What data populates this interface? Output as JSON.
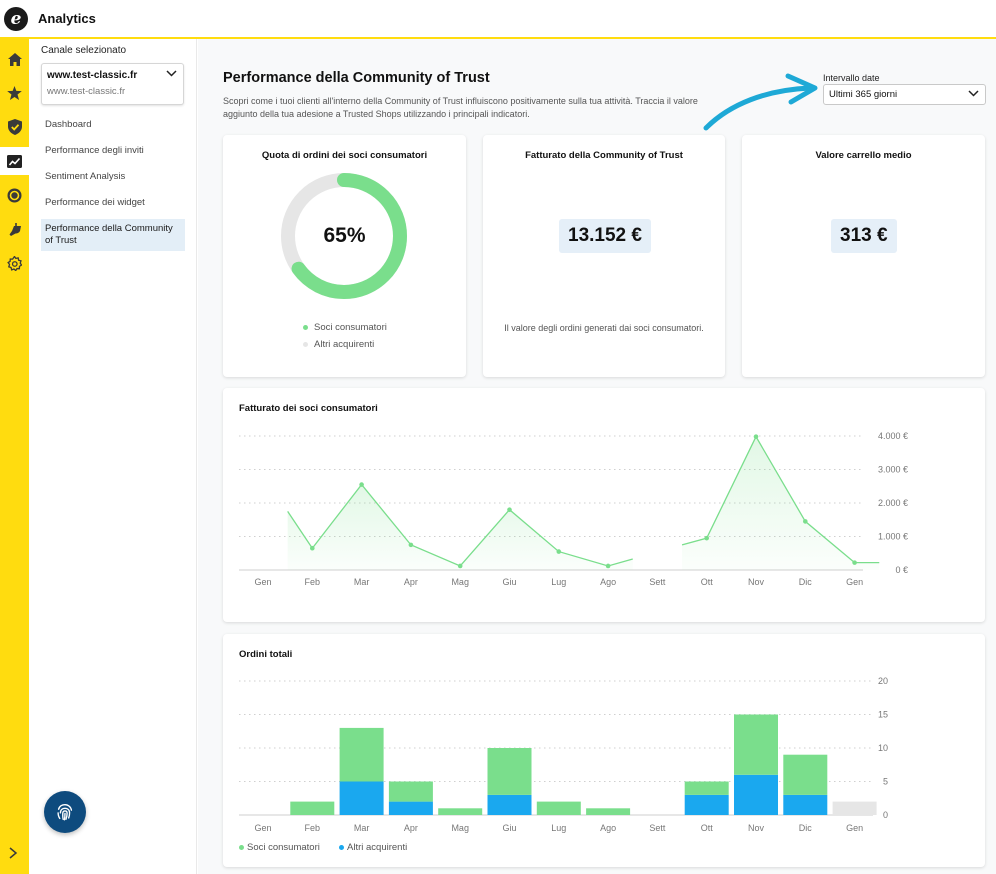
{
  "app": {
    "title": "Analytics"
  },
  "rail": {
    "items": [
      {
        "name": "home-icon"
      },
      {
        "name": "star-icon"
      },
      {
        "name": "shield-check-icon"
      },
      {
        "name": "analytics-icon",
        "active": true
      },
      {
        "name": "coin-icon"
      },
      {
        "name": "plug-icon"
      },
      {
        "name": "gear-icon"
      }
    ]
  },
  "sidebar": {
    "channel_label": "Canale selezionato",
    "channel_selected": "www.test-classic.fr",
    "channel_url": "www.test-classic.fr",
    "items": [
      {
        "label": "Dashboard"
      },
      {
        "label": "Performance degli inviti"
      },
      {
        "label": "Sentiment Analysis"
      },
      {
        "label": "Performance dei widget"
      },
      {
        "label": "Performance della Community of Trust",
        "active": true
      }
    ]
  },
  "page": {
    "title": "Performance della Community of Trust",
    "description": "Scopri come i tuoi clienti all'interno della Community of Trust influiscono positivamente sulla tua attività. Traccia il valore aggiunto della tua adesione a Trusted Shops utilizzando i principali indicatori.",
    "date_label": "Intervallo date",
    "date_value": "Ultimi 365 giorni"
  },
  "cards": {
    "share": {
      "title": "Quota di ordini dei soci consumatori",
      "value": "65%",
      "fraction": 0.65,
      "legend": [
        "Soci consumatori",
        "Altri acquirenti"
      ]
    },
    "revenue": {
      "title": "Fatturato della Community of Trust",
      "value": "13.152 €",
      "note": "Il valore degli ordini generati dai soci consumatori."
    },
    "basket": {
      "title": "Valore carrello medio",
      "value": "313 €"
    }
  },
  "colors": {
    "green": "#7ade8c",
    "blue": "#1aa8ef",
    "grey": "#e6e6e6",
    "yellow": "#ffdc0f",
    "arrow": "#1ea9d6"
  },
  "chart_data": [
    {
      "type": "line",
      "title": "Fatturato dei soci consumatori",
      "categories": [
        "Gen",
        "Feb",
        "Mar",
        "Apr",
        "Mag",
        "Giu",
        "Lug",
        "Ago",
        "Sett",
        "Ott",
        "Nov",
        "Dic",
        "Gen"
      ],
      "y_ticks": [
        "0 €",
        "1.000 €",
        "2.000 €",
        "3.000 €",
        "4.000 €"
      ],
      "ylim": [
        0,
        4000
      ],
      "grid": true,
      "segments": [
        [
          [
            0.5,
            1750
          ],
          [
            1,
            650
          ],
          [
            2,
            2550
          ],
          [
            3,
            750
          ],
          [
            4,
            120
          ],
          [
            5,
            1800
          ],
          [
            6,
            550
          ],
          [
            7,
            120
          ],
          [
            7.5,
            330
          ]
        ],
        [
          [
            8.5,
            750
          ],
          [
            9,
            950
          ],
          [
            10,
            3980
          ],
          [
            11,
            1450
          ],
          [
            12,
            220
          ],
          [
            12.5,
            220
          ]
        ]
      ]
    },
    {
      "type": "bar",
      "title": "Ordini totali",
      "categories": [
        "Gen",
        "Feb",
        "Mar",
        "Apr",
        "Mag",
        "Giu",
        "Lug",
        "Ago",
        "Sett",
        "Ott",
        "Nov",
        "Dic",
        "Gen"
      ],
      "y_ticks": [
        "0",
        "5",
        "10",
        "15",
        "20"
      ],
      "ylim": [
        0,
        20
      ],
      "grid": true,
      "series": [
        {
          "name": "Altri acquirenti",
          "values": [
            0,
            0,
            5,
            2,
            0,
            3,
            0,
            0,
            0,
            3,
            6,
            3,
            0
          ]
        },
        {
          "name": "Soci consumatori",
          "values": [
            0,
            2,
            8,
            3,
            1,
            7,
            2,
            1,
            0,
            2,
            9,
            6,
            0
          ]
        },
        {
          "name": "",
          "values": [
            0,
            0,
            0,
            0,
            0,
            0,
            0,
            0,
            0,
            0,
            0,
            0,
            2
          ]
        }
      ],
      "legend": [
        "Soci consumatori",
        "Altri acquirenti"
      ],
      "legend_position": "bottom-left"
    }
  ]
}
